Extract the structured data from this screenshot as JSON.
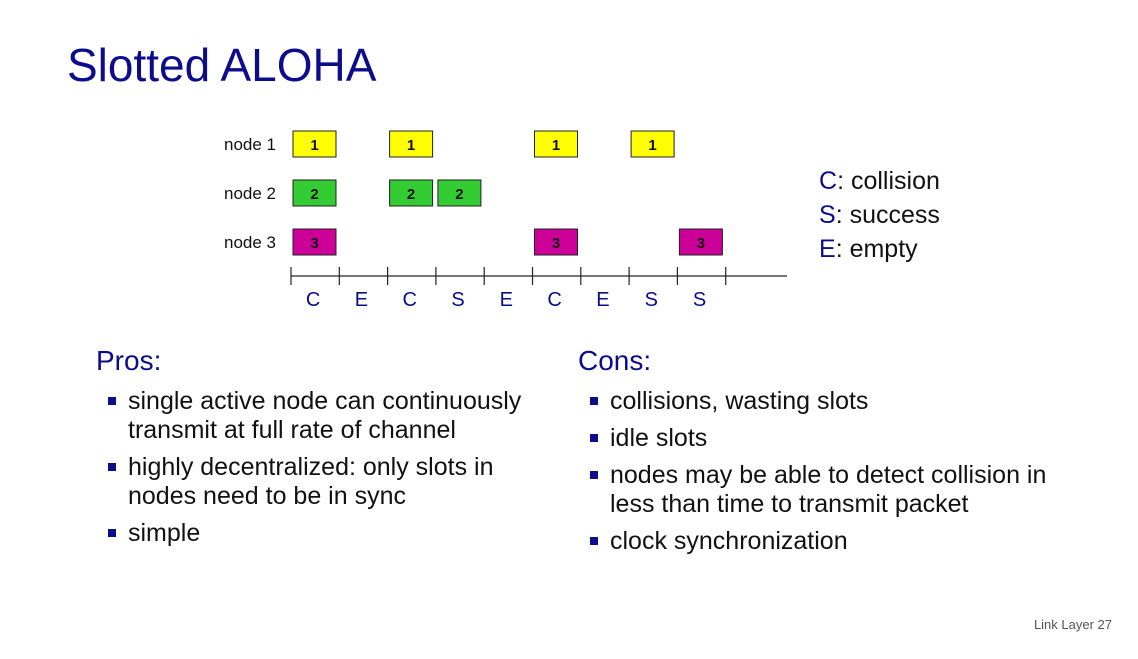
{
  "title": "Slotted ALOHA",
  "diagram": {
    "nodes": [
      {
        "label": "node 1",
        "number": "1",
        "color": "#ffff00",
        "slots": [
          0,
          2,
          5,
          7
        ]
      },
      {
        "label": "node 2",
        "number": "2",
        "color": "#33cc33",
        "slots": [
          0,
          2,
          3
        ]
      },
      {
        "label": "node 3",
        "number": "3",
        "color": "#cc0099",
        "slots": [
          0,
          5,
          8
        ]
      }
    ],
    "slot_labels": [
      "C",
      "E",
      "C",
      "S",
      "E",
      "C",
      "E",
      "S",
      "S"
    ]
  },
  "legend": [
    {
      "key": "C",
      "text": ": collision"
    },
    {
      "key": "S",
      "text": ": success"
    },
    {
      "key": "E",
      "text": ": empty"
    }
  ],
  "pros": {
    "heading": "Pros:",
    "items": [
      "single active node can continuously transmit at full rate of channel",
      "highly decentralized: only slots in nodes need to be in sync",
      "simple"
    ]
  },
  "cons": {
    "heading": "Cons:",
    "items": [
      "collisions, wasting slots",
      "idle slots",
      "nodes may be able to detect collision in less than time to transmit packet",
      "clock synchronization"
    ]
  },
  "footer": "Link Layer 27"
}
